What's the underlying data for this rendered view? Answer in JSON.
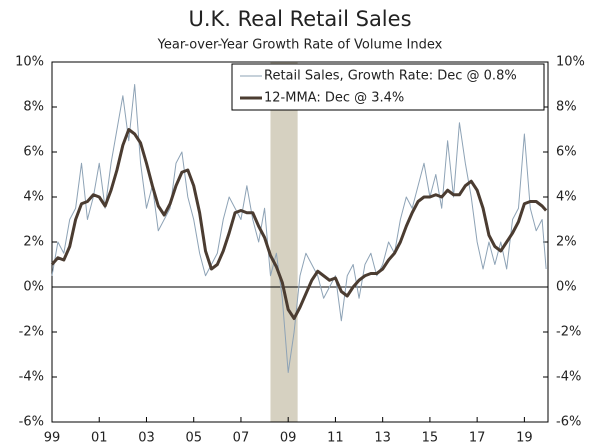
{
  "chart_data": {
    "type": "line",
    "title": "U.K. Real Retail Sales",
    "subtitle": "Year-over-Year Growth Rate of Volume Index",
    "x": [
      1999,
      1999.25,
      1999.5,
      1999.75,
      2000,
      2000.25,
      2000.5,
      2000.75,
      2001,
      2001.25,
      2001.5,
      2001.75,
      2002,
      2002.25,
      2002.5,
      2002.75,
      2003,
      2003.25,
      2003.5,
      2003.75,
      2004,
      2004.25,
      2004.5,
      2004.75,
      2005,
      2005.25,
      2005.5,
      2005.75,
      2006,
      2006.25,
      2006.5,
      2006.75,
      2007,
      2007.25,
      2007.5,
      2007.75,
      2008,
      2008.25,
      2008.5,
      2008.75,
      2009,
      2009.25,
      2009.5,
      2009.75,
      2010,
      2010.25,
      2010.5,
      2010.75,
      2011,
      2011.25,
      2011.5,
      2011.75,
      2012,
      2012.25,
      2012.5,
      2012.75,
      2013,
      2013.25,
      2013.5,
      2013.75,
      2014,
      2014.25,
      2014.5,
      2014.75,
      2015,
      2015.25,
      2015.5,
      2015.75,
      2016,
      2016.25,
      2016.5,
      2016.75,
      2017,
      2017.25,
      2017.5,
      2017.75,
      2018,
      2018.25,
      2018.5,
      2018.75,
      2019,
      2019.25,
      2019.5,
      2019.75,
      2019.92
    ],
    "series": [
      {
        "name": "Retail Sales, Growth Rate: Dec @ 0.8%",
        "color": "#8ea3b6",
        "width": 1,
        "values": [
          0.5,
          2.0,
          1.5,
          3.0,
          3.5,
          5.5,
          3.0,
          4.0,
          5.5,
          3.5,
          5.5,
          7.0,
          8.5,
          6.5,
          9.0,
          5.5,
          3.5,
          4.5,
          2.5,
          3.0,
          3.5,
          5.5,
          6.0,
          4.0,
          3.0,
          1.5,
          0.5,
          1.0,
          1.5,
          3.0,
          4.0,
          3.5,
          3.0,
          4.5,
          3.0,
          2.0,
          3.5,
          0.5,
          1.5,
          -0.5,
          -3.8,
          -2.0,
          0.5,
          1.5,
          1.0,
          0.5,
          -0.5,
          0.0,
          0.5,
          -1.5,
          0.5,
          1.0,
          -0.5,
          1.0,
          1.5,
          0.5,
          1.0,
          2.0,
          1.5,
          3.0,
          4.0,
          3.5,
          4.5,
          5.5,
          4.0,
          5.0,
          3.5,
          6.5,
          4.0,
          7.3,
          5.5,
          4.0,
          2.0,
          0.8,
          2.0,
          1.0,
          2.0,
          0.8,
          3.0,
          3.5,
          6.8,
          3.5,
          2.5,
          3.0,
          0.8
        ]
      },
      {
        "name": "12-MMA: Dec @ 3.4%",
        "color": "#4b3c31",
        "width": 3,
        "values": [
          1.0,
          1.3,
          1.2,
          1.8,
          3.0,
          3.7,
          3.8,
          4.1,
          4.0,
          3.6,
          4.3,
          5.2,
          6.3,
          7.0,
          6.8,
          6.4,
          5.5,
          4.5,
          3.6,
          3.2,
          3.7,
          4.5,
          5.1,
          5.2,
          4.5,
          3.3,
          1.6,
          0.8,
          1.0,
          1.6,
          2.4,
          3.3,
          3.4,
          3.3,
          3.3,
          2.7,
          2.2,
          1.4,
          0.9,
          0.2,
          -1.0,
          -1.4,
          -0.9,
          -0.3,
          0.3,
          0.7,
          0.5,
          0.3,
          0.4,
          -0.2,
          -0.4,
          0.0,
          0.3,
          0.5,
          0.6,
          0.6,
          0.8,
          1.2,
          1.5,
          2.0,
          2.7,
          3.3,
          3.8,
          4.0,
          4.0,
          4.1,
          4.0,
          4.3,
          4.1,
          4.1,
          4.5,
          4.7,
          4.3,
          3.5,
          2.3,
          1.8,
          1.6,
          2.0,
          2.4,
          2.9,
          3.7,
          3.8,
          3.8,
          3.6,
          3.4
        ]
      }
    ],
    "shaded_regions": [
      {
        "start": 2008.25,
        "end": 2009.4,
        "color": "#d6d1c1"
      }
    ],
    "xlim": [
      1999,
      2020
    ],
    "xticks": [
      {
        "value": 1999,
        "label": "99"
      },
      {
        "value": 2001,
        "label": "01"
      },
      {
        "value": 2003,
        "label": "03"
      },
      {
        "value": 2005,
        "label": "05"
      },
      {
        "value": 2007,
        "label": "07"
      },
      {
        "value": 2009,
        "label": "09"
      },
      {
        "value": 2011,
        "label": "11"
      },
      {
        "value": 2013,
        "label": "13"
      },
      {
        "value": 2015,
        "label": "15"
      },
      {
        "value": 2017,
        "label": "17"
      },
      {
        "value": 2019,
        "label": "19"
      }
    ],
    "ylim": [
      -6,
      10
    ],
    "yticks": [
      {
        "value": -6,
        "label": "-6%"
      },
      {
        "value": -4,
        "label": "-4%"
      },
      {
        "value": -2,
        "label": "-2%"
      },
      {
        "value": 0,
        "label": "0%"
      },
      {
        "value": 2,
        "label": "2%"
      },
      {
        "value": 4,
        "label": "4%"
      },
      {
        "value": 6,
        "label": "6%"
      },
      {
        "value": 8,
        "label": "8%"
      },
      {
        "value": 10,
        "label": "10%"
      }
    ],
    "y2lim": [
      -6,
      10
    ],
    "y2ticks": [
      {
        "value": -6,
        "label": "-6%"
      },
      {
        "value": -4,
        "label": "-4%"
      },
      {
        "value": -2,
        "label": "-2%"
      },
      {
        "value": 0,
        "label": "0%"
      },
      {
        "value": 2,
        "label": "2%"
      },
      {
        "value": 4,
        "label": "4%"
      },
      {
        "value": 6,
        "label": "6%"
      },
      {
        "value": 8,
        "label": "8%"
      },
      {
        "value": 10,
        "label": "10%"
      }
    ],
    "legend": "upper right"
  }
}
